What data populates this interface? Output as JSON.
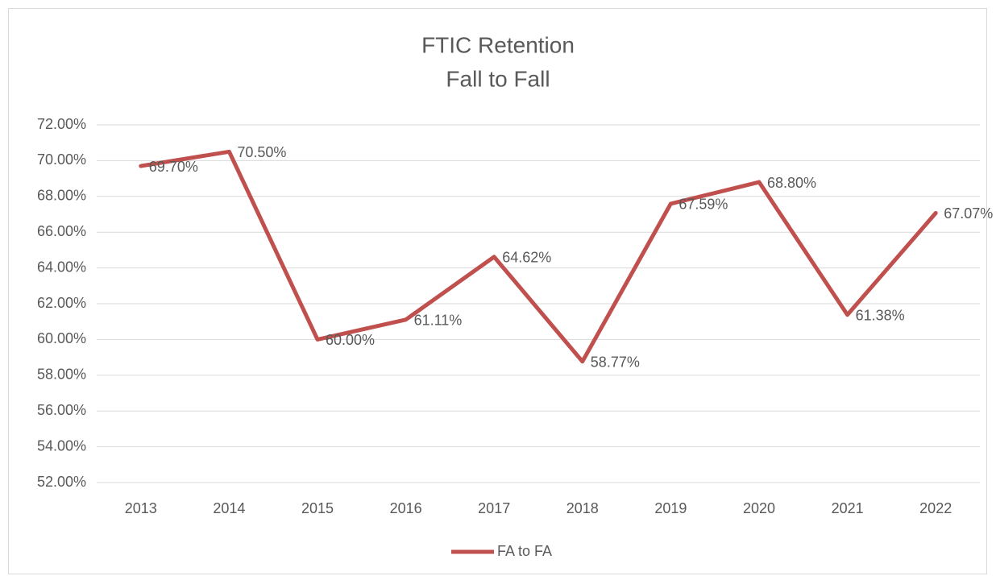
{
  "chart_data": {
    "type": "line",
    "title": "FTIC Retention",
    "subtitle": "Fall to Fall",
    "categories": [
      "2013",
      "2014",
      "2015",
      "2016",
      "2017",
      "2018",
      "2019",
      "2020",
      "2021",
      "2022"
    ],
    "series": [
      {
        "name": "FA to FA",
        "color": "#c0504d",
        "values": [
          69.7,
          70.5,
          60.0,
          61.11,
          64.62,
          58.77,
          67.59,
          68.8,
          61.38,
          67.07
        ],
        "value_labels": [
          "69.70%",
          "70.50%",
          "60.00%",
          "61.11%",
          "64.62%",
          "58.77%",
          "67.59%",
          "68.80%",
          "61.38%",
          "67.07%"
        ]
      }
    ],
    "ylim": [
      52,
      72
    ],
    "yticks": [
      {
        "value": 52,
        "label": "52.00%"
      },
      {
        "value": 54,
        "label": "54.00%"
      },
      {
        "value": 56,
        "label": "56.00%"
      },
      {
        "value": 58,
        "label": "58.00%"
      },
      {
        "value": 60,
        "label": "60.00%"
      },
      {
        "value": 62,
        "label": "62.00%"
      },
      {
        "value": 64,
        "label": "64.00%"
      },
      {
        "value": 66,
        "label": "66.00%"
      },
      {
        "value": 68,
        "label": "68.00%"
      },
      {
        "value": 70,
        "label": "70.00%"
      },
      {
        "value": 72,
        "label": "72.00%"
      }
    ],
    "grid": true,
    "legend": "bottom"
  }
}
